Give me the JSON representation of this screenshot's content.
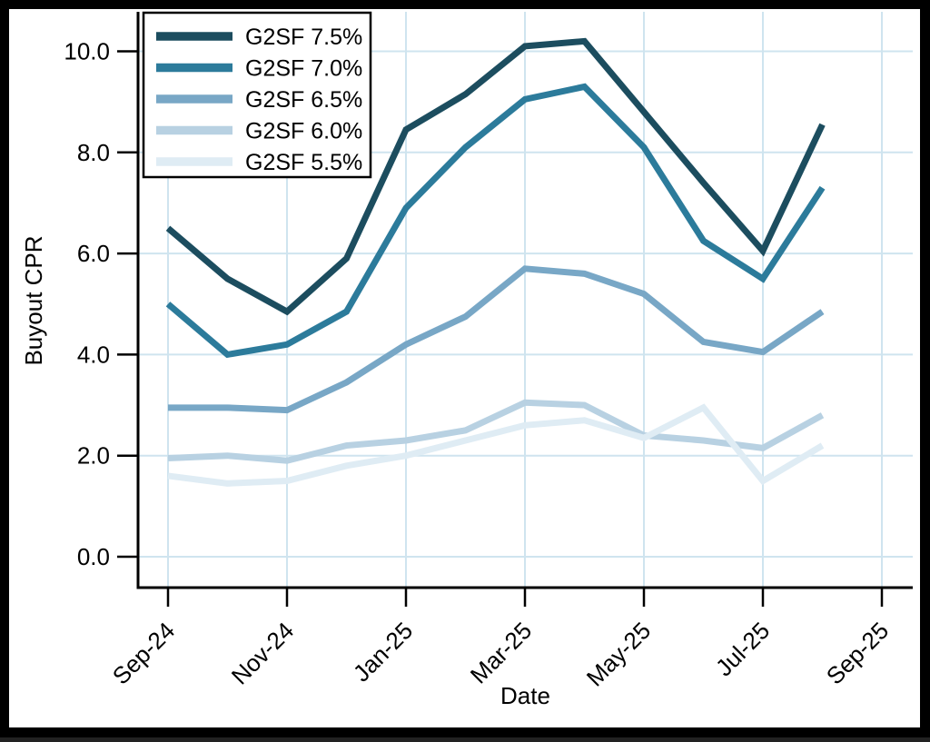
{
  "chart_data": {
    "type": "line",
    "title": "",
    "xlabel": "Date",
    "ylabel": "Buyout CPR",
    "grid": true,
    "legend_position": "top-left",
    "x_months": [
      "Sep-24",
      "Oct-24",
      "Nov-24",
      "Dec-24",
      "Jan-25",
      "Feb-25",
      "Mar-25",
      "Apr-25",
      "May-25",
      "Jun-25",
      "Jul-25",
      "Aug-25"
    ],
    "x_tick_labels": [
      "Sep-24",
      "Nov-24",
      "Jan-25",
      "Mar-25",
      "May-25",
      "Jul-25",
      "Sep-25"
    ],
    "y_tick_labels": [
      "0.0",
      "2.0",
      "4.0",
      "6.0",
      "8.0",
      "10.0"
    ],
    "y_ticks": [
      0,
      2,
      4,
      6,
      8,
      10
    ],
    "ylim": [
      -0.6,
      10.8
    ],
    "series": [
      {
        "name": "G2SF 7.5%",
        "color": "#1c4d5f",
        "values": [
          6.5,
          5.5,
          4.85,
          5.9,
          8.45,
          9.15,
          10.1,
          10.2,
          8.8,
          7.4,
          6.05,
          8.55
        ]
      },
      {
        "name": "G2SF 7.0%",
        "color": "#2c7b9b",
        "values": [
          5.0,
          4.0,
          4.2,
          4.85,
          6.9,
          8.1,
          9.05,
          9.3,
          8.1,
          6.25,
          5.5,
          7.3
        ]
      },
      {
        "name": "G2SF 6.5%",
        "color": "#78a7c6",
        "values": [
          2.95,
          2.95,
          2.9,
          3.45,
          4.2,
          4.75,
          5.7,
          5.6,
          5.2,
          4.25,
          4.05,
          4.85
        ]
      },
      {
        "name": "G2SF 6.0%",
        "color": "#b8d1e2",
        "values": [
          1.95,
          2.0,
          1.9,
          2.2,
          2.3,
          2.5,
          3.05,
          3.0,
          2.4,
          2.3,
          2.15,
          2.8
        ]
      },
      {
        "name": "G2SF 5.5%",
        "color": "#dfecf4",
        "values": [
          1.6,
          1.45,
          1.5,
          1.8,
          2.0,
          2.3,
          2.6,
          2.7,
          2.35,
          2.95,
          1.5,
          2.2
        ]
      }
    ]
  },
  "colors": {
    "frame": "#000000",
    "background": "#ffffff",
    "grid": "#cfe4ef",
    "axis": "#000000",
    "legend_border": "#000000",
    "legend_fill": "#ffffff"
  }
}
